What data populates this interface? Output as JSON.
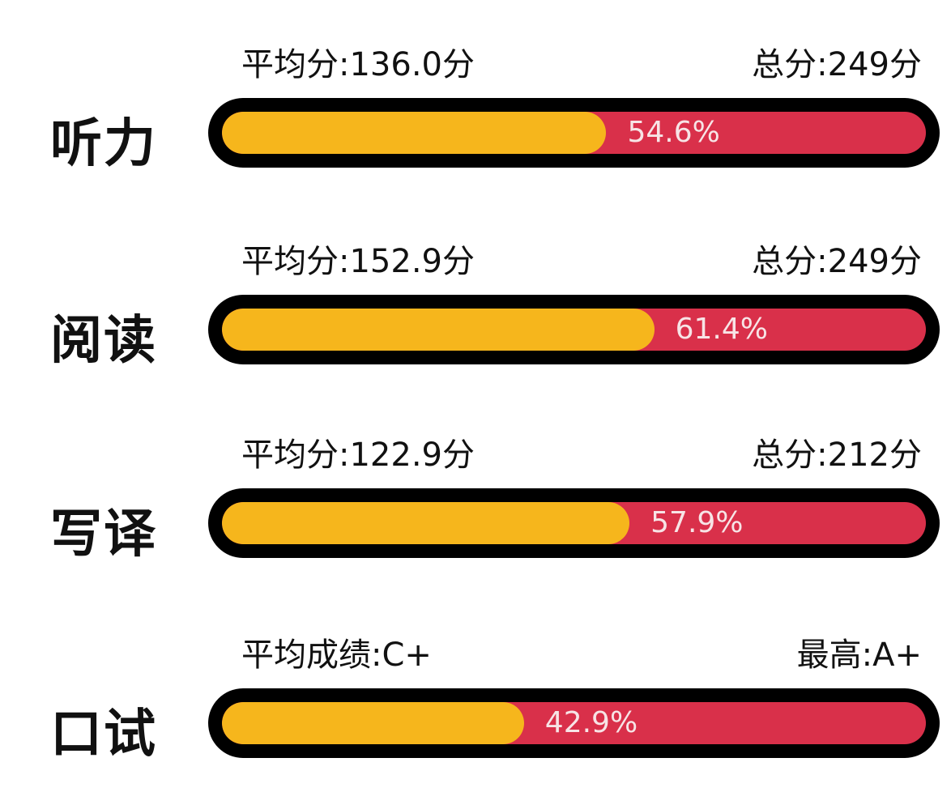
{
  "chart_data": {
    "type": "bar",
    "orientation": "horizontal-progress",
    "colors": {
      "fill": "#F6B61C",
      "remainder": "#D9304A",
      "border": "#000000"
    },
    "items": [
      {
        "category": "听力",
        "left_text": "平均分:136.0分",
        "right_text": "总分:249分",
        "value": 54.6,
        "value_label": "54.6%"
      },
      {
        "category": "阅读",
        "left_text": "平均分:152.9分",
        "right_text": "总分:249分",
        "value": 61.4,
        "value_label": "61.4%"
      },
      {
        "category": "写译",
        "left_text": "平均分:122.9分",
        "right_text": "总分:212分",
        "value": 57.9,
        "value_label": "57.9%"
      },
      {
        "category": "口试",
        "left_text": "平均成绩:C+",
        "right_text": "最高:A+",
        "value": 42.9,
        "value_label": "42.9%"
      }
    ]
  }
}
